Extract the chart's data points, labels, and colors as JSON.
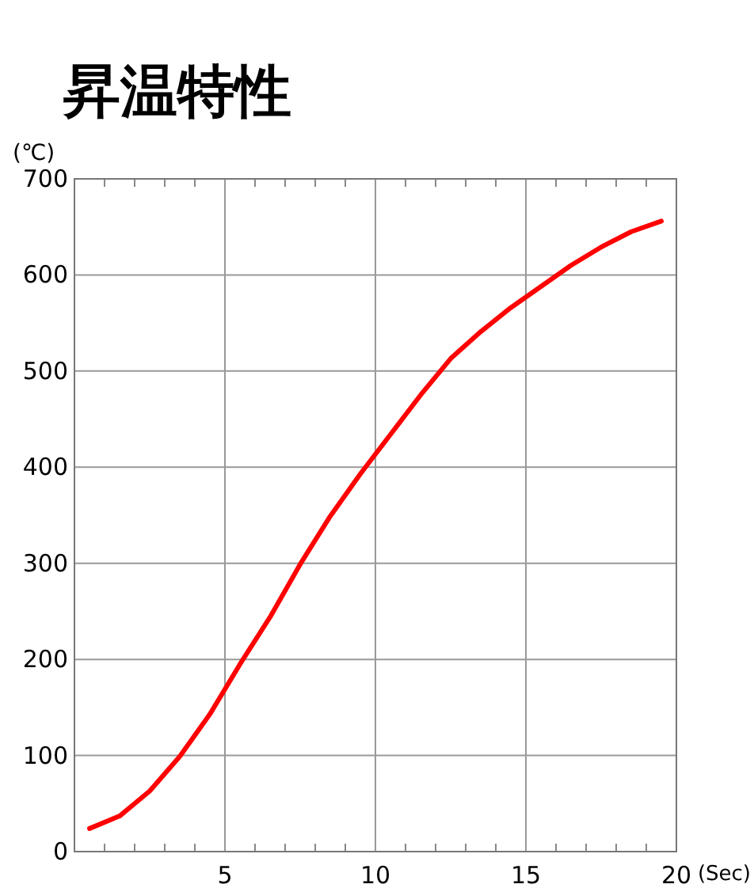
{
  "chart_data": {
    "type": "line",
    "title": "昇温特性",
    "xlabel": "(Sec)",
    "ylabel": "(℃)",
    "x": [
      0.5,
      1.5,
      2.5,
      3.5,
      4.5,
      5.5,
      6.5,
      7.5,
      8.5,
      9.5,
      10.5,
      11.5,
      12.5,
      13.5,
      14.5,
      15.5,
      16.5,
      17.5,
      18.5,
      19.5
    ],
    "series": [
      {
        "color": "#ff0000",
        "values": [
          24,
          37,
          63,
          99,
          143,
          195,
          244,
          299,
          349,
          393,
          434,
          475,
          513,
          541,
          566,
          588,
          610,
          629,
          645,
          656
        ]
      }
    ],
    "xlim": [
      0,
      20
    ],
    "xticks": [
      5,
      10,
      15,
      20
    ],
    "ylim": [
      0,
      700
    ],
    "yticks": [
      0,
      100,
      200,
      300,
      400,
      500,
      600,
      700
    ],
    "grid": true,
    "marker": "none",
    "line_style": "solid"
  }
}
